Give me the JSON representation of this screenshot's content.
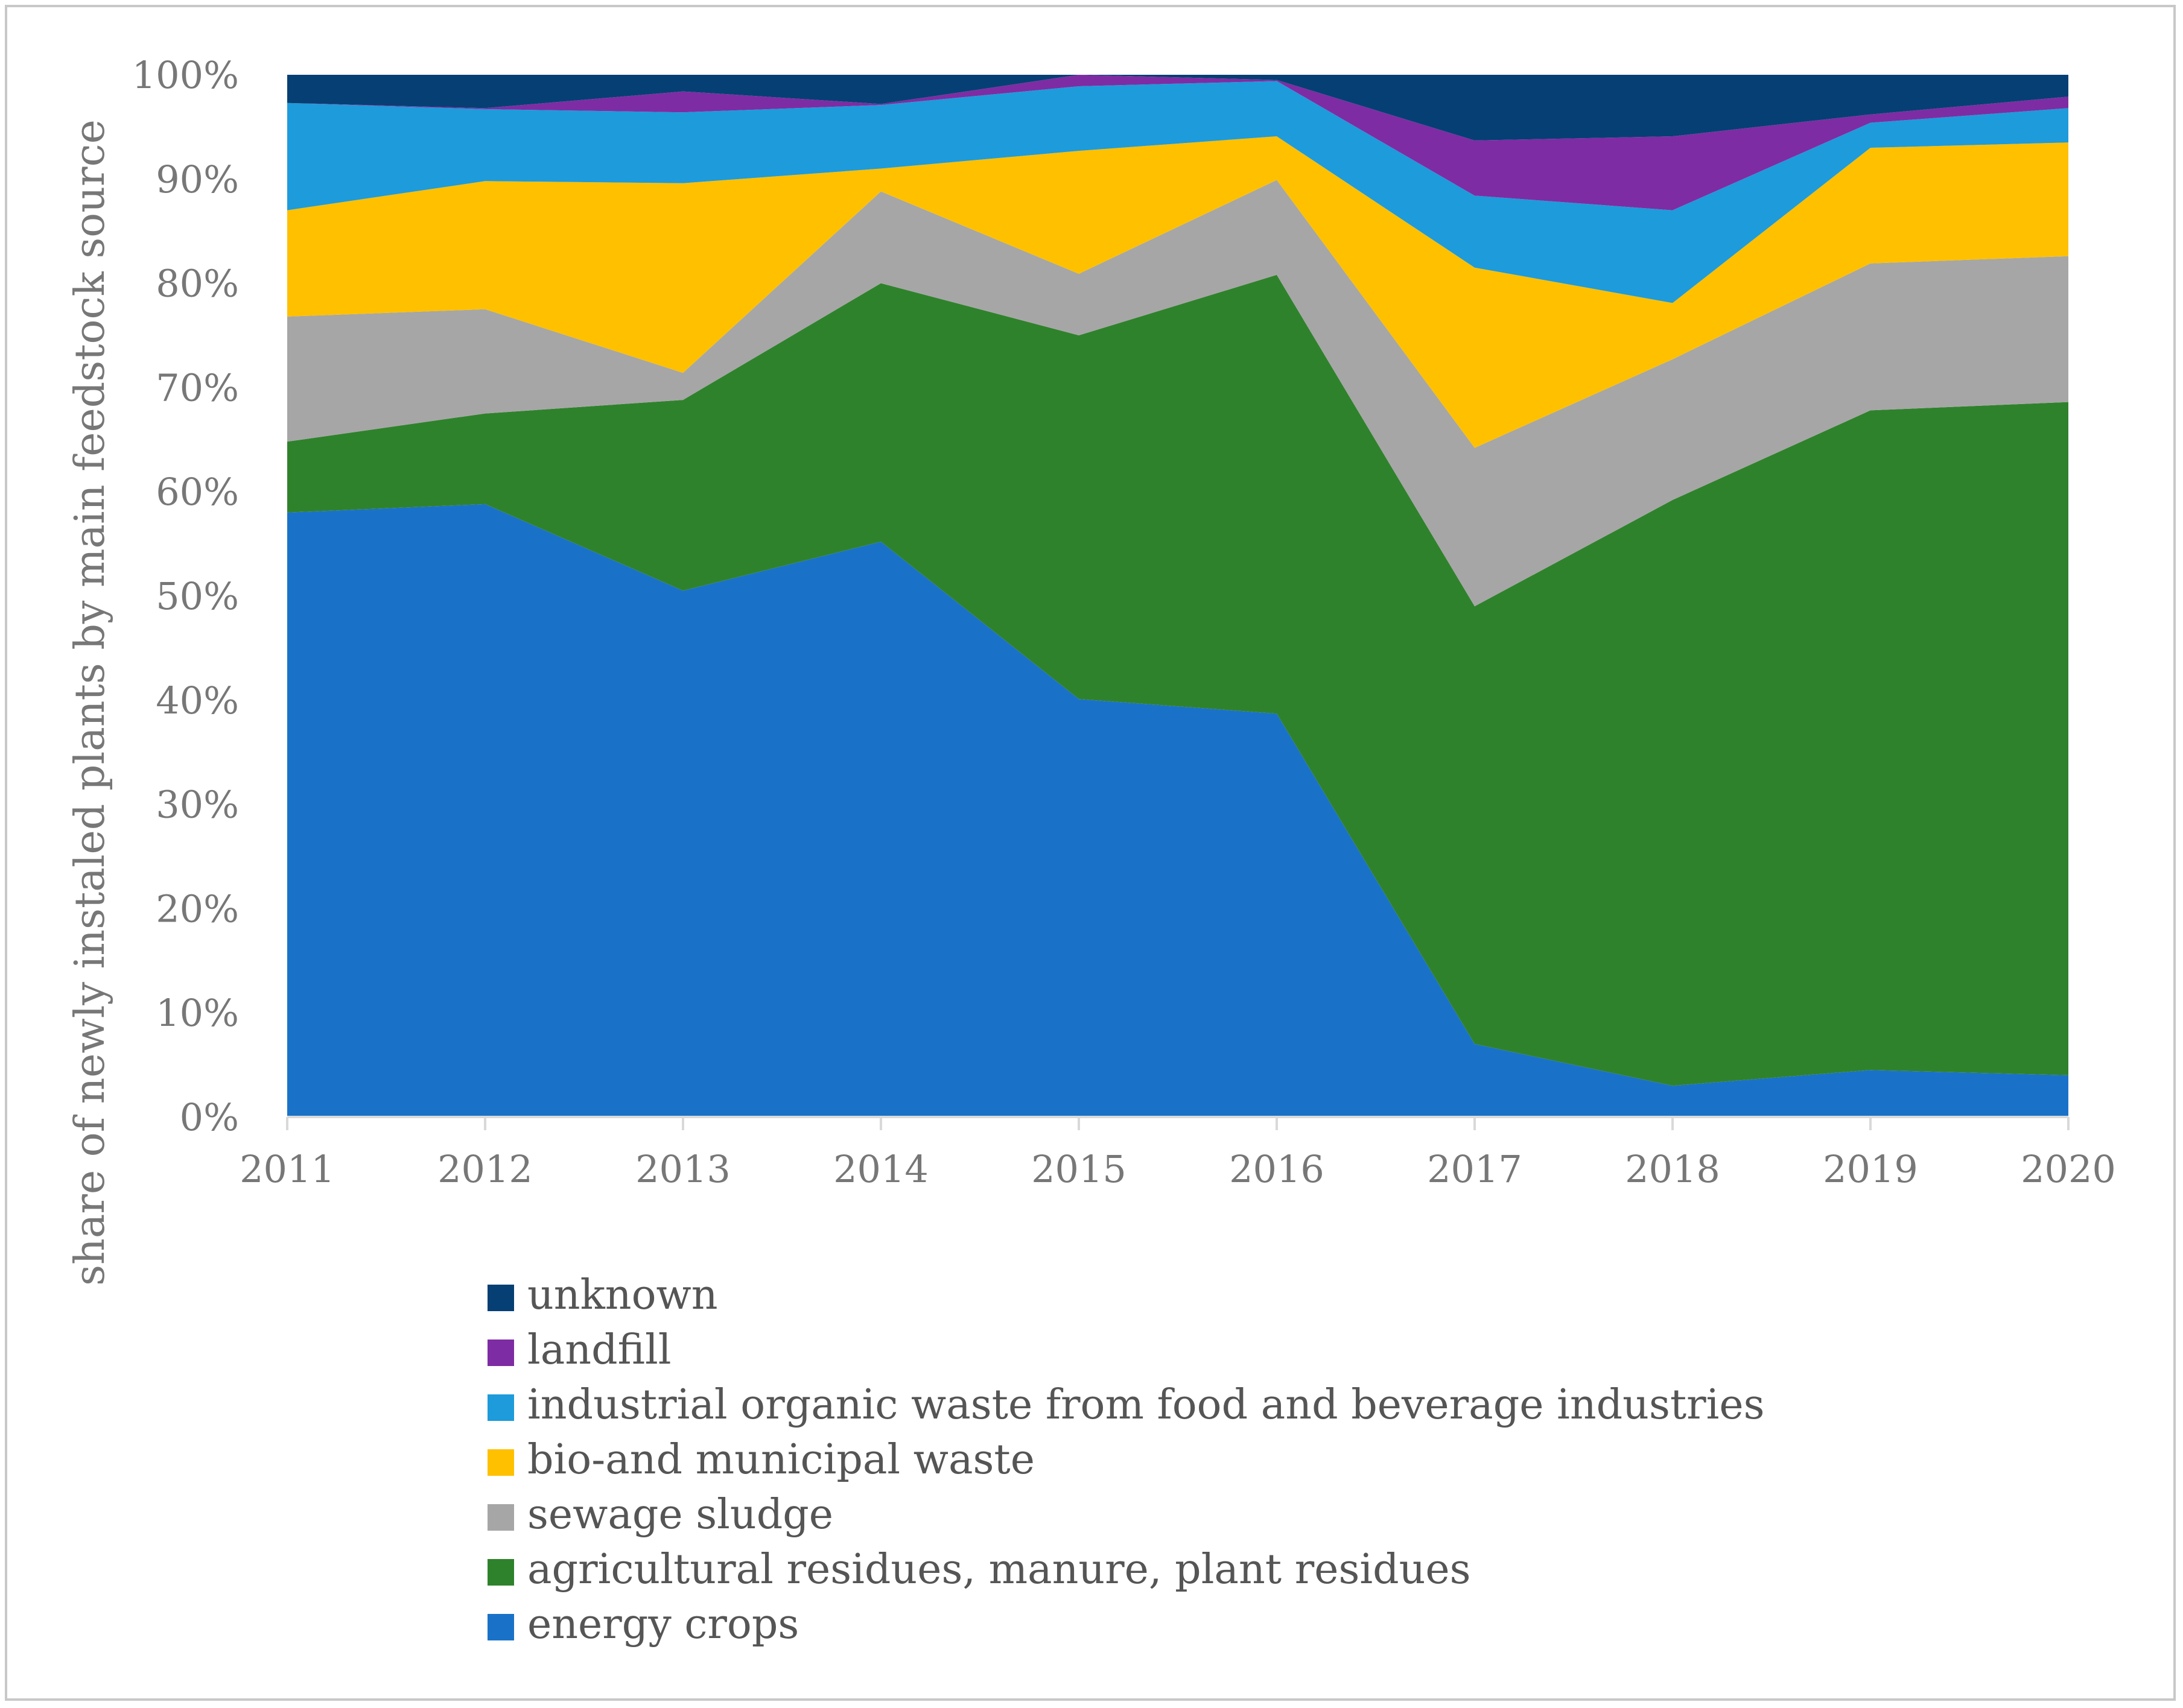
{
  "chart_data": {
    "type": "area",
    "stacked": true,
    "percent": true,
    "title": "",
    "xlabel": "",
    "ylabel": "share of newly instaled plants by main feedstock source",
    "x": [
      "2011",
      "2012",
      "2013",
      "2014",
      "2015",
      "2016",
      "2017",
      "2018",
      "2019",
      "2020"
    ],
    "ylim": [
      0,
      100
    ],
    "yticks": [
      "0%",
      "10%",
      "20%",
      "30%",
      "40%",
      "50%",
      "60%",
      "70%",
      "80%",
      "90%",
      "100%"
    ],
    "series": [
      {
        "name": "energy crops",
        "color": "#1a72c8",
        "values": [
          58,
          58.8,
          50.5,
          55.2,
          40.1,
          38.7,
          7,
          3,
          4.5,
          4
        ]
      },
      {
        "name": "agricultural residues, manure, plant residues",
        "color": "#2f822c",
        "values": [
          6.8,
          8.7,
          18.3,
          24.8,
          34.9,
          42.1,
          42,
          56.2,
          63.3,
          64.6
        ]
      },
      {
        "name": "sewage sludge",
        "color": "#a6a6a6",
        "values": [
          12,
          10,
          2.6,
          8.8,
          5.9,
          9.1,
          15.2,
          13.5,
          14.1,
          14
        ]
      },
      {
        "name": "bio-and municipal waste",
        "color": "#ffc000",
        "values": [
          10.2,
          12.3,
          18.2,
          2.2,
          11.8,
          4.2,
          17.3,
          5.4,
          11.1,
          10.9
        ]
      },
      {
        "name": "industrial organic waste from food and beverage industries",
        "color": "#1e9bdb",
        "values": [
          10.3,
          6.9,
          6.8,
          6.1,
          6.2,
          5.3,
          6.9,
          8.9,
          2.4,
          3.3
        ]
      },
      {
        "name": "landfill",
        "color": "#7e2ca3",
        "values": [
          0,
          0.1,
          2,
          0.1,
          1.1,
          0.1,
          5.3,
          7.1,
          0.8,
          1.1
        ]
      },
      {
        "name": "unknown",
        "color": "#063f74",
        "values": [
          2.7,
          3.2,
          1.6,
          2.8,
          0,
          0.5,
          6.3,
          5.9,
          3.8,
          2.1
        ]
      }
    ],
    "legend_order": [
      "unknown",
      "landfill",
      "industrial organic waste from food and beverage industries",
      "bio-and municipal waste",
      "sewage sludge",
      "agricultural residues, manure, plant residues",
      "energy crops"
    ],
    "legend_position": "bottom"
  }
}
